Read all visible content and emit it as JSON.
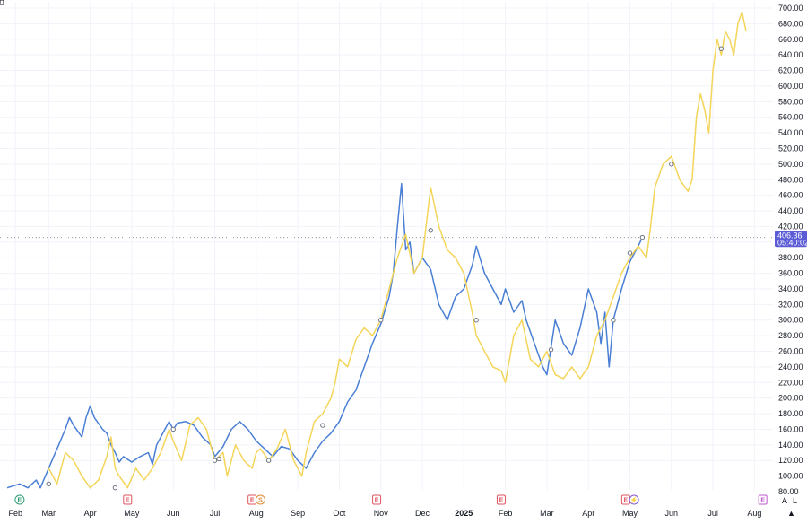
{
  "chart_data": {
    "type": "line",
    "ylim": [
      80,
      700
    ],
    "y_ticks": [
      80,
      100,
      120,
      140,
      160,
      180,
      200,
      220,
      240,
      260,
      280,
      300,
      320,
      340,
      360,
      380,
      400,
      420,
      440,
      460,
      480,
      500,
      520,
      540,
      560,
      580,
      600,
      620,
      640,
      660,
      680,
      700
    ],
    "y_tick_labels": [
      "80.00",
      "100.00",
      "120.00",
      "140.00",
      "160.00",
      "180.00",
      "200.00",
      "220.00",
      "240.00",
      "260.00",
      "280.00",
      "300.00",
      "320.00",
      "340.00",
      "360.00",
      "380.00",
      "400.00",
      "420.00",
      "440.00",
      "460.00",
      "480.00",
      "500.00",
      "520.00",
      "540.00",
      "560.00",
      "580.00",
      "600.00",
      "620.00",
      "640.00",
      "660.00",
      "680.00",
      "700.00"
    ],
    "x_axis_labels": [
      {
        "label": "Feb",
        "t": 0.2
      },
      {
        "label": "Mar",
        "t": 1.0
      },
      {
        "label": "Apr",
        "t": 2.0
      },
      {
        "label": "May",
        "t": 3.0
      },
      {
        "label": "Jun",
        "t": 4.0
      },
      {
        "label": "Jul",
        "t": 5.0
      },
      {
        "label": "Aug",
        "t": 6.0
      },
      {
        "label": "Sep",
        "t": 7.0
      },
      {
        "label": "Oct",
        "t": 8.0
      },
      {
        "label": "Nov",
        "t": 9.0
      },
      {
        "label": "Dec",
        "t": 10.0
      },
      {
        "label": "2025",
        "t": 11.0,
        "bold": true
      },
      {
        "label": "Feb",
        "t": 12.0
      },
      {
        "label": "Mar",
        "t": 13.0
      },
      {
        "label": "Apr",
        "t": 14.0
      },
      {
        "label": "May",
        "t": 15.0
      },
      {
        "label": "Jun",
        "t": 16.0
      },
      {
        "label": "Jul",
        "t": 17.0
      },
      {
        "label": "Aug",
        "t": 18.0
      }
    ],
    "series": [
      {
        "color": "#4a7fd4",
        "points": [
          [
            0.0,
            85
          ],
          [
            0.3,
            90
          ],
          [
            0.5,
            85
          ],
          [
            0.7,
            95
          ],
          [
            0.8,
            85
          ],
          [
            1.0,
            110
          ],
          [
            1.2,
            135
          ],
          [
            1.4,
            160
          ],
          [
            1.5,
            175
          ],
          [
            1.6,
            165
          ],
          [
            1.8,
            150
          ],
          [
            1.9,
            175
          ],
          [
            2.0,
            190
          ],
          [
            2.1,
            175
          ],
          [
            2.3,
            160
          ],
          [
            2.4,
            155
          ],
          [
            2.5,
            140
          ],
          [
            2.6,
            130
          ],
          [
            2.7,
            118
          ],
          [
            2.8,
            125
          ],
          [
            3.0,
            118
          ],
          [
            3.2,
            125
          ],
          [
            3.4,
            130
          ],
          [
            3.5,
            115
          ],
          [
            3.6,
            140
          ],
          [
            3.8,
            160
          ],
          [
            3.9,
            170
          ],
          [
            4.0,
            160
          ],
          [
            4.1,
            168
          ],
          [
            4.3,
            170
          ],
          [
            4.5,
            165
          ],
          [
            4.7,
            150
          ],
          [
            4.9,
            140
          ],
          [
            5.0,
            125
          ],
          [
            5.2,
            138
          ],
          [
            5.4,
            160
          ],
          [
            5.6,
            170
          ],
          [
            5.8,
            160
          ],
          [
            6.0,
            145
          ],
          [
            6.2,
            135
          ],
          [
            6.4,
            125
          ],
          [
            6.6,
            138
          ],
          [
            6.8,
            135
          ],
          [
            7.0,
            120
          ],
          [
            7.2,
            110
          ],
          [
            7.4,
            130
          ],
          [
            7.6,
            145
          ],
          [
            7.8,
            155
          ],
          [
            8.0,
            170
          ],
          [
            8.2,
            195
          ],
          [
            8.4,
            210
          ],
          [
            8.6,
            240
          ],
          [
            8.8,
            270
          ],
          [
            9.0,
            295
          ],
          [
            9.2,
            330
          ],
          [
            9.3,
            360
          ],
          [
            9.4,
            420
          ],
          [
            9.5,
            475
          ],
          [
            9.6,
            390
          ],
          [
            9.7,
            400
          ],
          [
            9.8,
            360
          ],
          [
            10.0,
            380
          ],
          [
            10.2,
            365
          ],
          [
            10.4,
            320
          ],
          [
            10.6,
            300
          ],
          [
            10.8,
            330
          ],
          [
            11.0,
            340
          ],
          [
            11.2,
            370
          ],
          [
            11.3,
            395
          ],
          [
            11.5,
            360
          ],
          [
            11.7,
            340
          ],
          [
            11.9,
            320
          ],
          [
            12.0,
            340
          ],
          [
            12.2,
            310
          ],
          [
            12.4,
            325
          ],
          [
            12.5,
            300
          ],
          [
            12.7,
            270
          ],
          [
            12.9,
            240
          ],
          [
            13.0,
            230
          ],
          [
            13.2,
            300
          ],
          [
            13.4,
            270
          ],
          [
            13.6,
            255
          ],
          [
            13.8,
            290
          ],
          [
            14.0,
            340
          ],
          [
            14.2,
            310
          ],
          [
            14.3,
            270
          ],
          [
            14.4,
            310
          ],
          [
            14.5,
            240
          ],
          [
            14.6,
            300
          ],
          [
            14.8,
            340
          ],
          [
            15.0,
            375
          ],
          [
            15.2,
            395
          ],
          [
            15.3,
            406
          ]
        ]
      },
      {
        "color": "#f4d55a",
        "points": [
          [
            1.0,
            110
          ],
          [
            1.2,
            90
          ],
          [
            1.4,
            130
          ],
          [
            1.6,
            120
          ],
          [
            1.8,
            100
          ],
          [
            2.0,
            85
          ],
          [
            2.2,
            95
          ],
          [
            2.4,
            125
          ],
          [
            2.5,
            150
          ],
          [
            2.6,
            110
          ],
          [
            2.7,
            100
          ],
          [
            2.9,
            85
          ],
          [
            3.1,
            110
          ],
          [
            3.3,
            95
          ],
          [
            3.5,
            110
          ],
          [
            3.7,
            130
          ],
          [
            3.9,
            160
          ],
          [
            4.0,
            145
          ],
          [
            4.2,
            120
          ],
          [
            4.4,
            165
          ],
          [
            4.6,
            175
          ],
          [
            4.8,
            160
          ],
          [
            5.0,
            120
          ],
          [
            5.2,
            130
          ],
          [
            5.3,
            100
          ],
          [
            5.5,
            140
          ],
          [
            5.7,
            120
          ],
          [
            5.9,
            110
          ],
          [
            6.0,
            130
          ],
          [
            6.1,
            135
          ],
          [
            6.3,
            120
          ],
          [
            6.5,
            135
          ],
          [
            6.7,
            160
          ],
          [
            6.9,
            120
          ],
          [
            7.1,
            100
          ],
          [
            7.2,
            130
          ],
          [
            7.4,
            170
          ],
          [
            7.6,
            180
          ],
          [
            7.8,
            200
          ],
          [
            7.9,
            220
          ],
          [
            8.0,
            250
          ],
          [
            8.2,
            240
          ],
          [
            8.4,
            275
          ],
          [
            8.6,
            290
          ],
          [
            8.8,
            280
          ],
          [
            9.0,
            300
          ],
          [
            9.2,
            340
          ],
          [
            9.4,
            380
          ],
          [
            9.6,
            410
          ],
          [
            9.8,
            360
          ],
          [
            10.0,
            380
          ],
          [
            10.2,
            470
          ],
          [
            10.4,
            420
          ],
          [
            10.6,
            390
          ],
          [
            10.8,
            380
          ],
          [
            11.0,
            360
          ],
          [
            11.2,
            310
          ],
          [
            11.3,
            280
          ],
          [
            11.5,
            260
          ],
          [
            11.7,
            240
          ],
          [
            11.9,
            235
          ],
          [
            12.0,
            220
          ],
          [
            12.2,
            280
          ],
          [
            12.4,
            300
          ],
          [
            12.6,
            250
          ],
          [
            12.8,
            240
          ],
          [
            13.0,
            260
          ],
          [
            13.2,
            230
          ],
          [
            13.4,
            225
          ],
          [
            13.6,
            240
          ],
          [
            13.8,
            225
          ],
          [
            14.0,
            240
          ],
          [
            14.2,
            280
          ],
          [
            14.4,
            300
          ],
          [
            14.6,
            330
          ],
          [
            14.8,
            360
          ],
          [
            15.0,
            380
          ],
          [
            15.2,
            395
          ],
          [
            15.4,
            380
          ],
          [
            15.5,
            420
          ],
          [
            15.6,
            470
          ],
          [
            15.8,
            500
          ],
          [
            16.0,
            510
          ],
          [
            16.2,
            480
          ],
          [
            16.4,
            465
          ],
          [
            16.5,
            480
          ],
          [
            16.6,
            560
          ],
          [
            16.7,
            590
          ],
          [
            16.8,
            570
          ],
          [
            16.9,
            540
          ],
          [
            17.0,
            620
          ],
          [
            17.1,
            660
          ],
          [
            17.2,
            640
          ],
          [
            17.3,
            670
          ],
          [
            17.4,
            660
          ],
          [
            17.5,
            640
          ],
          [
            17.6,
            680
          ],
          [
            17.7,
            695
          ],
          [
            17.8,
            670
          ]
        ]
      }
    ],
    "point_markers": [
      {
        "t": 1.0,
        "v": 90,
        "color": "#4a7fd4"
      },
      {
        "t": 2.6,
        "v": 85,
        "color": "#4a7fd4"
      },
      {
        "t": 4.0,
        "v": 160,
        "color": "#4a7fd4"
      },
      {
        "t": 5.0,
        "v": 120,
        "color": "#4a7fd4"
      },
      {
        "t": 5.1,
        "v": 122,
        "color": "#4a7fd4"
      },
      {
        "t": 6.3,
        "v": 120,
        "color": "#4a7fd4"
      },
      {
        "t": 7.6,
        "v": 165,
        "color": "#f4d55a"
      },
      {
        "t": 9.0,
        "v": 300,
        "color": "#f4d55a"
      },
      {
        "t": 10.2,
        "v": 415,
        "color": "#f4d55a"
      },
      {
        "t": 11.3,
        "v": 300,
        "color": "#4a7fd4"
      },
      {
        "t": 13.1,
        "v": 262,
        "color": "#4a7fd4"
      },
      {
        "t": 14.6,
        "v": 300,
        "color": "#f4d55a"
      },
      {
        "t": 15.0,
        "v": 386,
        "color": "#4a7fd4"
      },
      {
        "t": 15.3,
        "v": 406,
        "color": "#4a7fd4"
      },
      {
        "t": 16.0,
        "v": 500,
        "color": "#f4d55a"
      },
      {
        "t": 17.2,
        "v": 648,
        "color": "#f4d55a"
      }
    ],
    "crosshair_value": 406,
    "price_tag": {
      "value": "406.36",
      "time": "05:40:02",
      "color": "#5b5bd6"
    },
    "event_markers": [
      {
        "t": 0.3,
        "letter": "E",
        "color": "#2a9d6f",
        "ring": true
      },
      {
        "t": 2.9,
        "letter": "E",
        "color": "#e0565f"
      },
      {
        "t": 5.9,
        "letter": "E",
        "color": "#e0565f"
      },
      {
        "t": 6.1,
        "letter": "S",
        "color": "#e08c3a",
        "ring": true
      },
      {
        "t": 8.9,
        "letter": "E",
        "color": "#e0565f"
      },
      {
        "t": 11.9,
        "letter": "E",
        "color": "#e0565f"
      },
      {
        "t": 14.9,
        "letter": "E",
        "color": "#e0565f"
      },
      {
        "t": 15.1,
        "letter": "⚡",
        "color": "#8b5cd6",
        "ring": true
      },
      {
        "t": 18.2,
        "letter": "E",
        "color": "#c058d0"
      }
    ],
    "controls": {
      "auto_label": "A",
      "log_label": "L"
    }
  }
}
